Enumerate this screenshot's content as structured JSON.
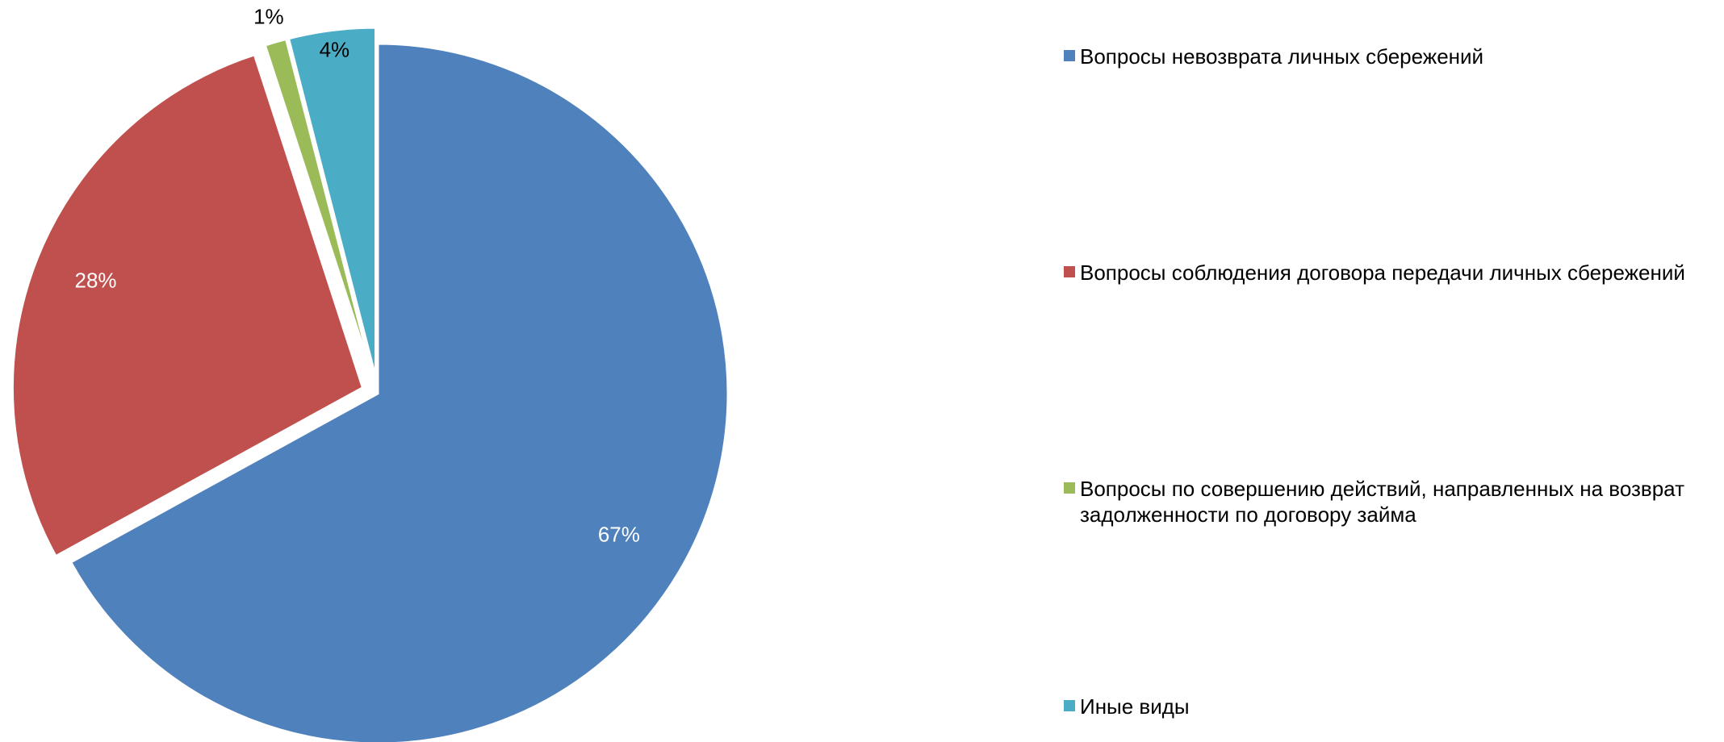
{
  "chart_data": {
    "type": "pie",
    "title": "",
    "categories": [
      "Вопросы невозврата личных сбережений",
      "Вопросы соблюдения договора передачи личных сбережений",
      "Вопросы по совершению действий, направленных на возврат задолженности по договору займа",
      "Иные виды"
    ],
    "values": [
      67,
      28,
      1,
      4
    ],
    "data_labels": [
      "67%",
      "28%",
      "1%",
      "4%"
    ],
    "colors": [
      "#4F81BD",
      "#C0504D",
      "#9BBB59",
      "#4BACC6"
    ],
    "exploded": true,
    "legend_position": "right"
  }
}
